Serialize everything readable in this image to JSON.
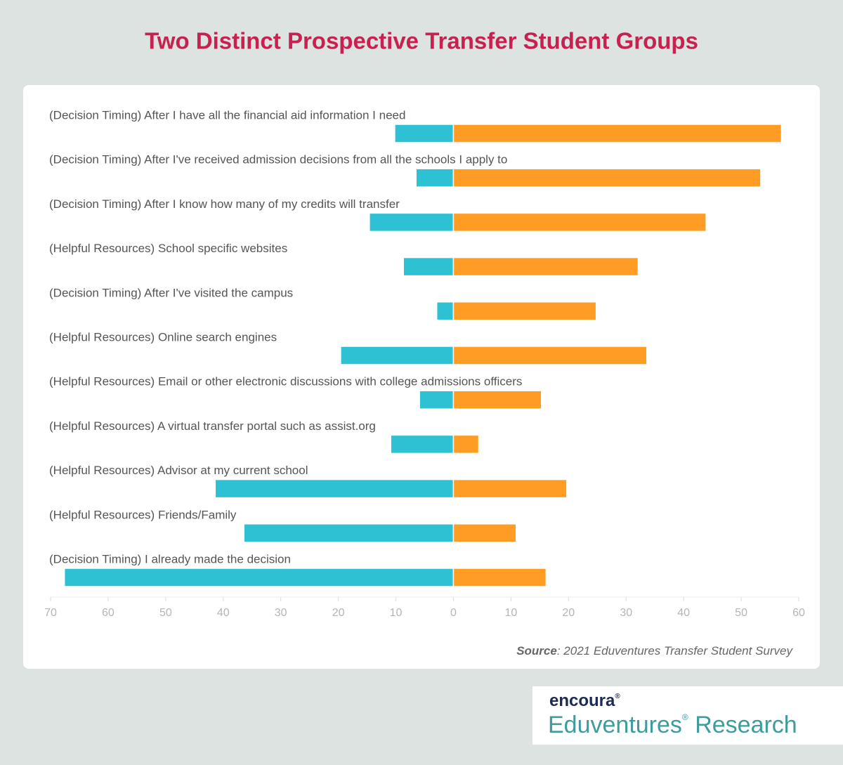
{
  "chart_data": {
    "type": "diverging-bar",
    "title": "Two Distinct Prospective Transfer Student Groups",
    "categories": [
      "(Decision Timing) After I have all the financial aid information I need",
      "(Decision Timing) After I've received admission decisions from all the schools I apply to",
      "(Decision Timing) After I know how many of my credits will transfer",
      "(Helpful Resources) School specific websites",
      "(Decision Timing) After I've visited the campus",
      "(Helpful Resources) Online search engines",
      "(Helpful Resources) Email or other electronic discussions with college admissions officers",
      "(Helpful Resources) A virtual transfer portal such as assist.org",
      "(Helpful Resources) Advisor at my current school",
      "(Helpful Resources) Friends/Family",
      "(Decision Timing) I already made the decision"
    ],
    "series": [
      {
        "color": "#2ec0d3",
        "values": [
          -10.2,
          -6.5,
          -14.6,
          -8.7,
          -2.9,
          -19.6,
          -5.9,
          -10.9,
          -41.4,
          -36.4,
          -67.6
        ]
      },
      {
        "color": "#ff9c23",
        "values": [
          57.0,
          53.4,
          43.9,
          32.1,
          24.8,
          33.6,
          15.3,
          4.4,
          19.7,
          10.9,
          16.1
        ]
      }
    ],
    "xlim": [
      -70,
      60
    ],
    "xticks": [
      {
        "value": -70,
        "label": "70"
      },
      {
        "value": -60,
        "label": "60"
      },
      {
        "value": -50,
        "label": "50"
      },
      {
        "value": -40,
        "label": "40"
      },
      {
        "value": -30,
        "label": "30"
      },
      {
        "value": -20,
        "label": "20"
      },
      {
        "value": -10,
        "label": "10"
      },
      0,
      10,
      20,
      30,
      40,
      50,
      60
    ],
    "source": {
      "label": "Source",
      "text": ": 2021 Eduventures Transfer Student Survey"
    }
  },
  "logo": {
    "brand": "encoura",
    "mark": "®",
    "name": "Eduventures",
    "name_mark": "®",
    "suffix": " Research"
  }
}
